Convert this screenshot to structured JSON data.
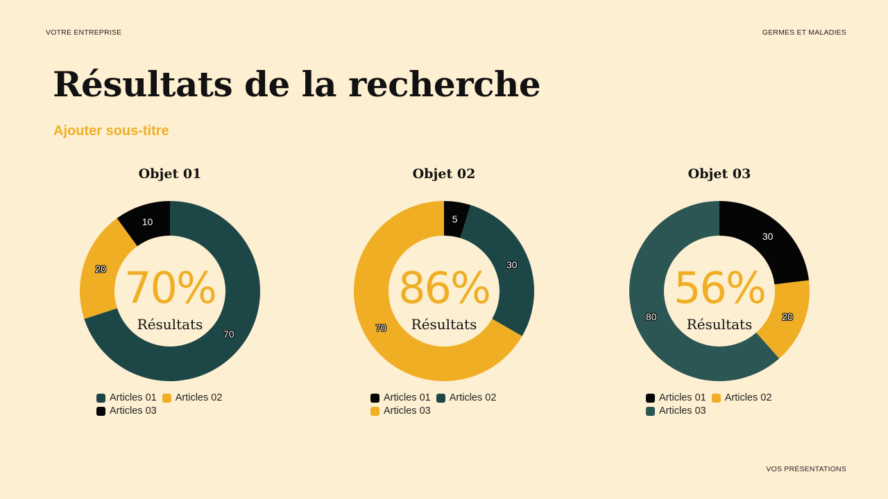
{
  "header": {
    "left": "VOTRE ENTREPRISE",
    "right": "GERMES ET MALADIES"
  },
  "footer": {
    "right": "VOS PRÉSENTATIONS"
  },
  "title": "Résultats de la recherche",
  "subtitle": "Ajouter sous-titre",
  "colors": {
    "teal": "#1d4746",
    "teal_light": "#2b5654",
    "yellow": "#f0ae25",
    "black": "#050505",
    "background": "#fdefd2"
  },
  "charts": [
    {
      "title": "Objet 01",
      "center_value": "70%",
      "center_label": "Résultats",
      "legend": [
        {
          "label": "Articles 01",
          "color": "#1d4746"
        },
        {
          "label": "Articles 02",
          "color": "#f0ae25"
        },
        {
          "label": "Articles 03",
          "color": "#050505"
        }
      ]
    },
    {
      "title": "Objet 02",
      "center_value": "86%",
      "center_label": "Résultats",
      "legend": [
        {
          "label": "Articles 01",
          "color": "#050505"
        },
        {
          "label": "Articles 02",
          "color": "#1d4746"
        },
        {
          "label": "Articles 03",
          "color": "#f0ae25"
        }
      ]
    },
    {
      "title": "Objet 03",
      "center_value": "56%",
      "center_label": "Résultats",
      "legend": [
        {
          "label": "Articles 01",
          "color": "#050505"
        },
        {
          "label": "Articles 02",
          "color": "#f0ae25"
        },
        {
          "label": "Articles 03",
          "color": "#2b5654"
        }
      ]
    }
  ],
  "chart_data": [
    {
      "type": "pie",
      "title": "Objet 01",
      "donut": true,
      "center_text": "70% Résultats",
      "categories": [
        "Articles 01",
        "Articles 02",
        "Articles 03"
      ],
      "values": [
        70,
        20,
        10
      ],
      "colors": [
        "#1d4746",
        "#f0ae25",
        "#050505"
      ],
      "legend_position": "bottom"
    },
    {
      "type": "pie",
      "title": "Objet 02",
      "donut": true,
      "center_text": "86% Résultats",
      "categories": [
        "Articles 01",
        "Articles 02",
        "Articles 03"
      ],
      "values": [
        5,
        30,
        70
      ],
      "colors": [
        "#050505",
        "#1d4746",
        "#f0ae25"
      ],
      "legend_position": "bottom"
    },
    {
      "type": "pie",
      "title": "Objet 03",
      "donut": true,
      "center_text": "56% Résultats",
      "categories": [
        "Articles 01",
        "Articles 02",
        "Articles 03"
      ],
      "values": [
        30,
        20,
        80
      ],
      "colors": [
        "#050505",
        "#f0ae25",
        "#2b5654"
      ],
      "legend_position": "bottom"
    }
  ]
}
